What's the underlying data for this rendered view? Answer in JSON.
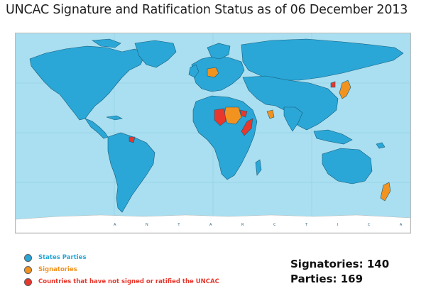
{
  "title": "UNCAC Signature and Ratification Status as of 06 December 2013",
  "map": {
    "antarctica_label": "A N T A R C T I C A",
    "colors": {
      "ocean": "#a9dff0",
      "states_parties": "#2aa7d7",
      "signatories": "#f29320",
      "not_signed": "#e8372c",
      "border": "#1a5c7a"
    }
  },
  "legend": [
    {
      "label": "States Parties",
      "color": "#2aa7d7",
      "text_color": "#2aa7d7"
    },
    {
      "label": "Signatories",
      "color": "#f29320",
      "text_color": "#f29320"
    },
    {
      "label": "Countries that have not signed or ratified the UNCAC",
      "color": "#e8372c",
      "text_color": "#e8372c"
    }
  ],
  "stats": {
    "signatories": "Signatories: 140",
    "parties": "Parties: 169"
  }
}
